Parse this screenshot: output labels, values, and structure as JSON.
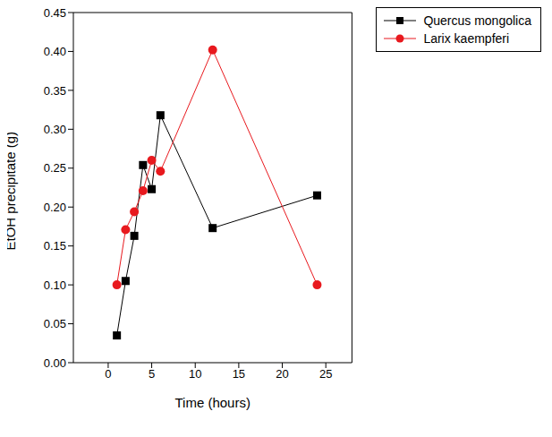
{
  "chart_data": {
    "type": "line",
    "x_label": "Time (hours)",
    "y_label": "EtOH precipitate (g)",
    "x": [
      1,
      2,
      3,
      4,
      5,
      6,
      12,
      24
    ],
    "series": [
      {
        "name": "Quercus mongolica",
        "color": "#000000",
        "marker": "square",
        "values": [
          0.035,
          0.105,
          0.163,
          0.254,
          0.223,
          0.318,
          0.173,
          0.215
        ]
      },
      {
        "name": "Larix kaempferi",
        "color": "#e8191e",
        "marker": "circle",
        "values": [
          0.1,
          0.171,
          0.194,
          0.221,
          0.26,
          0.246,
          0.402,
          0.1
        ]
      }
    ],
    "xlim": [
      -4,
      28
    ],
    "xticks": [
      0,
      5,
      10,
      15,
      20,
      25
    ],
    "ylim": [
      0,
      0.45
    ],
    "yticks": [
      {
        "value": 0,
        "label": "0.00"
      },
      {
        "value": 0.05,
        "label": "0.05"
      },
      {
        "value": 0.1,
        "label": "0.10"
      },
      {
        "value": 0.15,
        "label": "0.15"
      },
      {
        "value": 0.2,
        "label": "0.20"
      },
      {
        "value": 0.25,
        "label": "0.25"
      },
      {
        "value": 0.3,
        "label": "0.30"
      },
      {
        "value": 0.35,
        "label": "0.35"
      },
      {
        "value": 0.4,
        "label": "0.40"
      },
      {
        "value": 0.45,
        "label": "0.45"
      }
    ],
    "grid": false,
    "legend": "top-right"
  }
}
